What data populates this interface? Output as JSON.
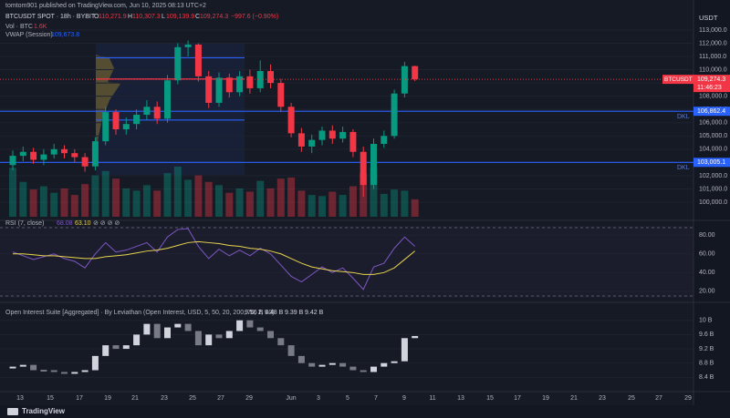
{
  "header": {
    "publisher": "tomtom901 published on TradingView.com, Jun 10, 2025 08:13 UTC+2",
    "currency": "USDT",
    "footer": "TradingView"
  },
  "x_labels": [
    "13",
    "15",
    "17",
    "19",
    "21",
    "23",
    "25",
    "27",
    "29",
    "Jun",
    "3",
    "5",
    "7",
    "9",
    "11",
    "13",
    "15",
    "17",
    "19",
    "21",
    "23",
    "25",
    "27",
    "29"
  ],
  "chart_data": [
    {
      "type": "candlestick",
      "title": "BTCUSDT SPOT · 18h · BYBIT",
      "legend": [
        {
          "key": "O",
          "value": "110,271.9"
        },
        {
          "key": "H",
          "value": "110,307.3"
        },
        {
          "key": "L",
          "value": "109,139.9"
        },
        {
          "key": "C",
          "value": "109,274.3"
        }
      ],
      "change": "−997.6 (−0.90%)",
      "volume_title": "Vol · BTC",
      "volume_label": "1.6K",
      "vwap_title": "VWAP (Session)",
      "vwap_label": "109,673.8",
      "up_color": "#089981",
      "down_color": "#f23645",
      "open": [
        102800,
        103500,
        103800,
        103200,
        103600,
        104000,
        103700,
        103400,
        102700,
        104600,
        106800,
        105500,
        105900,
        106600,
        107200,
        106300,
        109200,
        111700,
        111900,
        109500,
        107500,
        109400,
        108300,
        109500,
        108600,
        109900,
        109000,
        107200,
        105200,
        104200,
        104700,
        105400,
        104800,
        105300,
        103800,
        101300,
        104400,
        105000,
        108200,
        110271.9
      ],
      "high": [
        103900,
        104200,
        104100,
        104000,
        104400,
        104300,
        104000,
        103700,
        104900,
        107200,
        107000,
        106400,
        107000,
        107700,
        107600,
        109600,
        112000,
        112200,
        112000,
        109900,
        109800,
        109700,
        109900,
        110000,
        110700,
        110400,
        109300,
        107500,
        105600,
        105100,
        105700,
        105800,
        105700,
        105500,
        104200,
        104800,
        105400,
        108500,
        110600,
        110307.3
      ],
      "low": [
        102400,
        103100,
        102900,
        102800,
        103300,
        103300,
        103000,
        102300,
        102400,
        104300,
        105100,
        105100,
        105500,
        106200,
        105900,
        106000,
        108900,
        111000,
        109100,
        107100,
        107200,
        107900,
        108000,
        108200,
        108300,
        108600,
        106800,
        104900,
        103800,
        103700,
        104300,
        104400,
        104500,
        103400,
        100400,
        101000,
        104100,
        104800,
        107900,
        109139.9
      ],
      "close": [
        103500,
        103800,
        103200,
        103600,
        104000,
        103700,
        103400,
        102700,
        104600,
        106800,
        105500,
        105900,
        106600,
        107200,
        106300,
        109200,
        111700,
        111900,
        109500,
        107500,
        109400,
        108300,
        109500,
        108600,
        109900,
        109000,
        107200,
        105200,
        104200,
        104700,
        105400,
        104800,
        105300,
        103800,
        101300,
        104400,
        105000,
        108200,
        110271.9,
        109274.3
      ],
      "volume": [
        4500,
        3200,
        2500,
        2800,
        2200,
        2600,
        2000,
        3000,
        3800,
        4200,
        3500,
        2600,
        2400,
        2900,
        2400,
        4000,
        4600,
        3400,
        3800,
        3200,
        2900,
        2200,
        2600,
        2300,
        3300,
        2600,
        3500,
        3600,
        2400,
        2000,
        1900,
        2300,
        2000,
        2800,
        4000,
        4500,
        2100,
        2500,
        2400,
        1600
      ],
      "ylim": [
        98900,
        114300
      ],
      "yticks": [
        {
          "value": 100000,
          "label": "100,000.0"
        },
        {
          "value": 101000,
          "label": "101,000.0"
        },
        {
          "value": 102000,
          "label": "102,000.0"
        },
        {
          "value": 103000,
          "label": "103,000.0"
        },
        {
          "value": 104000,
          "label": "104,000.0"
        },
        {
          "value": 105000,
          "label": "105,000.0"
        },
        {
          "value": 106000,
          "label": "106,000.0"
        },
        {
          "value": 107000,
          "label": "107,000.0"
        },
        {
          "value": 108000,
          "label": "108,000.0"
        },
        {
          "value": 109000,
          "label": "109,000.0"
        },
        {
          "value": 110000,
          "label": "110,000.0"
        },
        {
          "value": 111000,
          "label": "111,000.0"
        },
        {
          "value": 112000,
          "label": "112,000.0"
        },
        {
          "value": 113000,
          "label": "113,000.0"
        }
      ],
      "levels": [
        {
          "value": 106862.4,
          "label": "106,862.4",
          "name": "DKL",
          "color": "#2962ff"
        },
        {
          "value": 103005.1,
          "label": "103,005.1",
          "name": "DKL",
          "color": "#2962ff"
        }
      ],
      "zones": [
        {
          "value": 110900,
          "color": "#2962ff"
        },
        {
          "value": 109300,
          "color": "#f23645"
        },
        {
          "value": 106200,
          "color": "#2962ff"
        }
      ],
      "last": {
        "symbol": "BTCUSDT",
        "value": 109274.3,
        "label": "109,274.3",
        "countdown": "11:46:23",
        "color": "#f23645"
      }
    },
    {
      "type": "line",
      "title": "RSI (7, close)",
      "extra": "⊘ ⊘ ⊘ ⊘",
      "series": [
        {
          "color": "#7e57c2",
          "legend_value": "68.08",
          "values": [
            62,
            58,
            54,
            57,
            60,
            55,
            52,
            45,
            60,
            72,
            62,
            64,
            68,
            72,
            62,
            78,
            86,
            87,
            68,
            55,
            65,
            58,
            64,
            58,
            66,
            60,
            48,
            36,
            30,
            38,
            46,
            40,
            45,
            34,
            22,
            46,
            50,
            66,
            78,
            68.08
          ]
        },
        {
          "color": "#e8d44d",
          "legend_value": "63.10",
          "values": [
            60,
            60,
            59,
            58,
            58,
            57,
            56,
            55,
            55,
            57,
            58,
            59,
            61,
            63,
            64,
            66,
            69,
            72,
            73,
            72,
            71,
            69,
            68,
            66,
            65,
            63,
            60,
            55,
            50,
            46,
            44,
            42,
            41,
            40,
            38,
            38,
            40,
            45,
            54,
            63.1
          ]
        }
      ],
      "ylim": [
        15,
        88
      ],
      "yticks": [
        {
          "value": 20,
          "label": "20.00"
        },
        {
          "value": 40,
          "label": "40.00"
        },
        {
          "value": 60,
          "label": "60.00"
        },
        {
          "value": 80,
          "label": "80.00"
        }
      ]
    },
    {
      "type": "candlestick",
      "title": "Open Interest Suite [Aggregated] · By Leviathan (Open Interest, USD, 5, 50, 20, 200, 70, 2, 40)",
      "legend_values": [
        "9.56 B",
        "9.48 B",
        "9.39 B",
        "9.42 B"
      ],
      "up_color": "#d1d4dc",
      "down_color": "#787b86",
      "open": [
        8.65,
        8.7,
        8.75,
        8.6,
        8.6,
        8.55,
        8.5,
        8.55,
        8.6,
        9.0,
        9.3,
        9.2,
        9.3,
        9.6,
        9.9,
        9.5,
        9.8,
        9.9,
        9.7,
        9.3,
        9.6,
        9.5,
        9.7,
        10.0,
        9.8,
        9.7,
        9.5,
        9.3,
        9.0,
        8.8,
        8.7,
        8.75,
        8.8,
        8.7,
        8.6,
        8.55,
        8.7,
        8.8,
        8.85,
        9.5
      ],
      "close": [
        8.7,
        8.75,
        8.6,
        8.6,
        8.55,
        8.5,
        8.55,
        8.6,
        9.0,
        9.3,
        9.2,
        9.3,
        9.6,
        9.9,
        9.5,
        9.8,
        9.9,
        9.7,
        9.3,
        9.6,
        9.5,
        9.7,
        10.0,
        9.8,
        9.7,
        9.5,
        9.3,
        9.0,
        8.8,
        8.7,
        8.75,
        8.8,
        8.7,
        8.6,
        8.55,
        8.7,
        8.8,
        8.85,
        9.5,
        9.56
      ],
      "ylim": [
        8.0,
        10.3
      ],
      "yticks": [
        {
          "value": 8.4,
          "label": "8.4 B"
        },
        {
          "value": 8.8,
          "label": "8.8 B"
        },
        {
          "value": 9.2,
          "label": "9.2 B"
        },
        {
          "value": 9.6,
          "label": "9.6 B"
        },
        {
          "value": 10,
          "label": "10 B"
        }
      ]
    }
  ]
}
